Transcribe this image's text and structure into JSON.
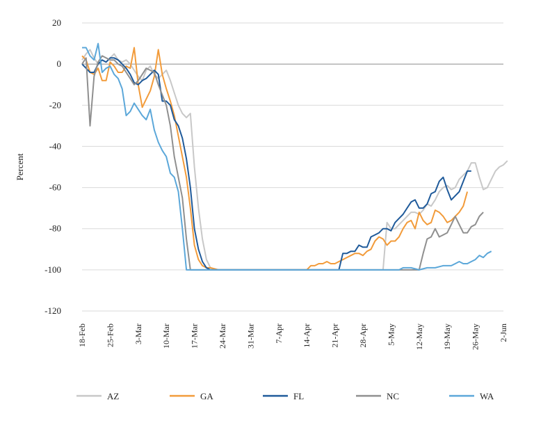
{
  "chart_data": {
    "type": "line",
    "ylabel": "Percent",
    "xlabel": "",
    "ylim": [
      -120,
      20
    ],
    "yticks": [
      20,
      0,
      -20,
      -40,
      -60,
      -80,
      -100,
      -120
    ],
    "x_tick_labels": [
      "18-Feb",
      "25-Feb",
      "3-Mar",
      "10-Mar",
      "17-Mar",
      "24-Mar",
      "31-Mar",
      "7-Apr",
      "14-Apr",
      "21-Apr",
      "28-Apr",
      "5-May",
      "12-May",
      "19-May",
      "26-May",
      "2-Jun"
    ],
    "x_start": "18-Feb",
    "x_end": "2-Jun",
    "grid": "horizontal",
    "legend_position": "bottom",
    "series": [
      {
        "name": "AZ",
        "color": "#c8c8c8",
        "points": [
          [
            0,
            2
          ],
          [
            1,
            5
          ],
          [
            2,
            7
          ],
          [
            3,
            3
          ],
          [
            4,
            0
          ],
          [
            5,
            2
          ],
          [
            6,
            1
          ],
          [
            7,
            3
          ],
          [
            8,
            5
          ],
          [
            9,
            2
          ],
          [
            10,
            1
          ],
          [
            11,
            2
          ],
          [
            12,
            0
          ],
          [
            13,
            -3
          ],
          [
            14,
            -6
          ],
          [
            15,
            -8
          ],
          [
            16,
            -3
          ],
          [
            17,
            -1
          ],
          [
            18,
            -5
          ],
          [
            19,
            -7
          ],
          [
            20,
            -5
          ],
          [
            21,
            -3
          ],
          [
            22,
            -8
          ],
          [
            23,
            -14
          ],
          [
            24,
            -20
          ],
          [
            25,
            -24
          ],
          [
            26,
            -26
          ],
          [
            27,
            -24
          ],
          [
            28,
            -50
          ],
          [
            29,
            -70
          ],
          [
            30,
            -85
          ],
          [
            31,
            -95
          ],
          [
            32,
            -99
          ],
          [
            33,
            -100
          ],
          [
            35,
            -100
          ],
          [
            60,
            -100
          ],
          [
            70,
            -100
          ],
          [
            75,
            -100
          ],
          [
            76,
            -77
          ],
          [
            77,
            -80
          ],
          [
            78,
            -80
          ],
          [
            79,
            -78
          ],
          [
            80,
            -76
          ],
          [
            81,
            -74
          ],
          [
            82,
            -72
          ],
          [
            83,
            -72
          ],
          [
            84,
            -73
          ],
          [
            85,
            -71
          ],
          [
            86,
            -68
          ],
          [
            87,
            -69
          ],
          [
            88,
            -66
          ],
          [
            89,
            -62
          ],
          [
            90,
            -60
          ],
          [
            91,
            -59
          ],
          [
            92,
            -61
          ],
          [
            93,
            -60
          ],
          [
            94,
            -56
          ],
          [
            95,
            -54
          ],
          [
            96,
            -52
          ],
          [
            97,
            -48
          ],
          [
            98,
            -48
          ],
          [
            99,
            -55
          ],
          [
            100,
            -61
          ],
          [
            101,
            -60
          ],
          [
            102,
            -56
          ],
          [
            103,
            -52
          ],
          [
            104,
            -50
          ],
          [
            105,
            -49
          ],
          [
            106,
            -47
          ]
        ]
      },
      {
        "name": "GA",
        "color": "#f29b3a",
        "points": [
          [
            0,
            4
          ],
          [
            1,
            2
          ],
          [
            2,
            -4
          ],
          [
            3,
            -5
          ],
          [
            4,
            -2
          ],
          [
            5,
            -8
          ],
          [
            6,
            -8
          ],
          [
            7,
            1
          ],
          [
            8,
            -1
          ],
          [
            9,
            -4
          ],
          [
            10,
            -4
          ],
          [
            11,
            -1
          ],
          [
            12,
            -2
          ],
          [
            13,
            8
          ],
          [
            14,
            -10
          ],
          [
            15,
            -21
          ],
          [
            16,
            -17
          ],
          [
            17,
            -13
          ],
          [
            18,
            -6
          ],
          [
            19,
            7
          ],
          [
            20,
            -5
          ],
          [
            21,
            -12
          ],
          [
            22,
            -18
          ],
          [
            23,
            -25
          ],
          [
            24,
            -35
          ],
          [
            25,
            -45
          ],
          [
            26,
            -55
          ],
          [
            27,
            -70
          ],
          [
            28,
            -88
          ],
          [
            29,
            -95
          ],
          [
            30,
            -98
          ],
          [
            31,
            -99
          ],
          [
            32,
            -99
          ],
          [
            34,
            -100
          ],
          [
            45,
            -100
          ],
          [
            50,
            -100
          ],
          [
            54,
            -100
          ],
          [
            56,
            -100
          ],
          [
            57,
            -98
          ],
          [
            58,
            -98
          ],
          [
            59,
            -97
          ],
          [
            60,
            -97
          ],
          [
            61,
            -96
          ],
          [
            62,
            -97
          ],
          [
            63,
            -97
          ],
          [
            64,
            -96
          ],
          [
            65,
            -95
          ],
          [
            66,
            -94
          ],
          [
            67,
            -93
          ],
          [
            68,
            -92
          ],
          [
            69,
            -92
          ],
          [
            70,
            -93
          ],
          [
            71,
            -91
          ],
          [
            72,
            -90
          ],
          [
            73,
            -86
          ],
          [
            74,
            -84
          ],
          [
            75,
            -85
          ],
          [
            76,
            -88
          ],
          [
            77,
            -86
          ],
          [
            78,
            -86
          ],
          [
            79,
            -84
          ],
          [
            80,
            -80
          ],
          [
            81,
            -77
          ],
          [
            82,
            -76
          ],
          [
            83,
            -80
          ],
          [
            84,
            -72
          ],
          [
            85,
            -76
          ],
          [
            86,
            -78
          ],
          [
            87,
            -77
          ],
          [
            88,
            -71
          ],
          [
            89,
            -72
          ],
          [
            90,
            -74
          ],
          [
            91,
            -77
          ],
          [
            92,
            -76
          ],
          [
            93,
            -74
          ],
          [
            94,
            -72
          ],
          [
            95,
            -69
          ],
          [
            96,
            -62
          ]
        ]
      },
      {
        "name": "FL",
        "color": "#1f5a9a",
        "points": [
          [
            0,
            0
          ],
          [
            1,
            -2
          ],
          [
            2,
            -4
          ],
          [
            3,
            -4
          ],
          [
            4,
            0
          ],
          [
            5,
            2
          ],
          [
            6,
            1
          ],
          [
            7,
            3
          ],
          [
            8,
            3
          ],
          [
            9,
            2
          ],
          [
            10,
            0
          ],
          [
            11,
            -2
          ],
          [
            12,
            -5
          ],
          [
            13,
            -9
          ],
          [
            14,
            -10
          ],
          [
            15,
            -8
          ],
          [
            16,
            -7
          ],
          [
            17,
            -5
          ],
          [
            18,
            -3
          ],
          [
            19,
            -5
          ],
          [
            20,
            -18
          ],
          [
            21,
            -18
          ],
          [
            22,
            -20
          ],
          [
            23,
            -27
          ],
          [
            24,
            -30
          ],
          [
            25,
            -36
          ],
          [
            26,
            -46
          ],
          [
            27,
            -60
          ],
          [
            28,
            -80
          ],
          [
            29,
            -90
          ],
          [
            30,
            -96
          ],
          [
            31,
            -99
          ],
          [
            32,
            -100
          ],
          [
            34,
            -100
          ],
          [
            45,
            -100
          ],
          [
            55,
            -100
          ],
          [
            60,
            -100
          ],
          [
            64,
            -100
          ],
          [
            65,
            -92
          ],
          [
            66,
            -92
          ],
          [
            67,
            -91
          ],
          [
            68,
            -91
          ],
          [
            69,
            -88
          ],
          [
            70,
            -89
          ],
          [
            71,
            -89
          ],
          [
            72,
            -84
          ],
          [
            73,
            -83
          ],
          [
            74,
            -82
          ],
          [
            75,
            -80
          ],
          [
            76,
            -80
          ],
          [
            77,
            -81
          ],
          [
            78,
            -77
          ],
          [
            79,
            -75
          ],
          [
            80,
            -73
          ],
          [
            81,
            -70
          ],
          [
            82,
            -67
          ],
          [
            83,
            -66
          ],
          [
            84,
            -70
          ],
          [
            85,
            -70
          ],
          [
            86,
            -68
          ],
          [
            87,
            -63
          ],
          [
            88,
            -62
          ],
          [
            89,
            -57
          ],
          [
            90,
            -55
          ],
          [
            91,
            -61
          ],
          [
            92,
            -66
          ],
          [
            93,
            -64
          ],
          [
            94,
            -62
          ],
          [
            95,
            -57
          ],
          [
            96,
            -52
          ],
          [
            97,
            -52
          ]
        ]
      },
      {
        "name": "NC",
        "color": "#8f8f8f",
        "points": [
          [
            0,
            0
          ],
          [
            1,
            3
          ],
          [
            2,
            -30
          ],
          [
            3,
            -6
          ],
          [
            4,
            1
          ],
          [
            5,
            4
          ],
          [
            6,
            3
          ],
          [
            7,
            2
          ],
          [
            8,
            2
          ],
          [
            9,
            0
          ],
          [
            10,
            -1
          ],
          [
            11,
            -4
          ],
          [
            12,
            -7
          ],
          [
            13,
            -10
          ],
          [
            14,
            -8
          ],
          [
            15,
            -5
          ],
          [
            16,
            -2
          ],
          [
            17,
            -3
          ],
          [
            18,
            -4
          ],
          [
            19,
            -10
          ],
          [
            20,
            -15
          ],
          [
            21,
            -20
          ],
          [
            22,
            -30
          ],
          [
            23,
            -45
          ],
          [
            24,
            -55
          ],
          [
            25,
            -65
          ],
          [
            26,
            -85
          ],
          [
            27,
            -100
          ],
          [
            30,
            -100
          ],
          [
            45,
            -100
          ],
          [
            60,
            -100
          ],
          [
            70,
            -100
          ],
          [
            80,
            -100
          ],
          [
            84,
            -100
          ],
          [
            85,
            -92
          ],
          [
            86,
            -85
          ],
          [
            87,
            -84
          ],
          [
            88,
            -80
          ],
          [
            89,
            -84
          ],
          [
            90,
            -83
          ],
          [
            91,
            -82
          ],
          [
            92,
            -78
          ],
          [
            93,
            -74
          ],
          [
            94,
            -78
          ],
          [
            95,
            -82
          ],
          [
            96,
            -82
          ],
          [
            97,
            -79
          ],
          [
            98,
            -78
          ],
          [
            99,
            -74
          ],
          [
            100,
            -72
          ]
        ]
      },
      {
        "name": "WA",
        "color": "#5ba7d9",
        "points": [
          [
            0,
            8
          ],
          [
            1,
            8
          ],
          [
            2,
            4
          ],
          [
            3,
            2
          ],
          [
            4,
            10
          ],
          [
            5,
            -4
          ],
          [
            6,
            -2
          ],
          [
            7,
            -1
          ],
          [
            8,
            -5
          ],
          [
            9,
            -7
          ],
          [
            10,
            -12
          ],
          [
            11,
            -25
          ],
          [
            12,
            -23
          ],
          [
            13,
            -19
          ],
          [
            14,
            -22
          ],
          [
            15,
            -25
          ],
          [
            16,
            -27
          ],
          [
            17,
            -22
          ],
          [
            18,
            -32
          ],
          [
            19,
            -38
          ],
          [
            20,
            -42
          ],
          [
            21,
            -45
          ],
          [
            22,
            -53
          ],
          [
            23,
            -55
          ],
          [
            24,
            -62
          ],
          [
            25,
            -80
          ],
          [
            26,
            -100
          ],
          [
            30,
            -100
          ],
          [
            45,
            -100
          ],
          [
            60,
            -100
          ],
          [
            70,
            -100
          ],
          [
            75,
            -100
          ],
          [
            79,
            -100
          ],
          [
            80,
            -99
          ],
          [
            82,
            -99
          ],
          [
            84,
            -100
          ],
          [
            86,
            -99
          ],
          [
            88,
            -99
          ],
          [
            90,
            -98
          ],
          [
            92,
            -98
          ],
          [
            93,
            -97
          ],
          [
            94,
            -96
          ],
          [
            95,
            -97
          ],
          [
            96,
            -97
          ],
          [
            97,
            -96
          ],
          [
            98,
            -95
          ],
          [
            99,
            -93
          ],
          [
            100,
            -94
          ],
          [
            101,
            -92
          ],
          [
            102,
            -91
          ]
        ]
      }
    ]
  }
}
